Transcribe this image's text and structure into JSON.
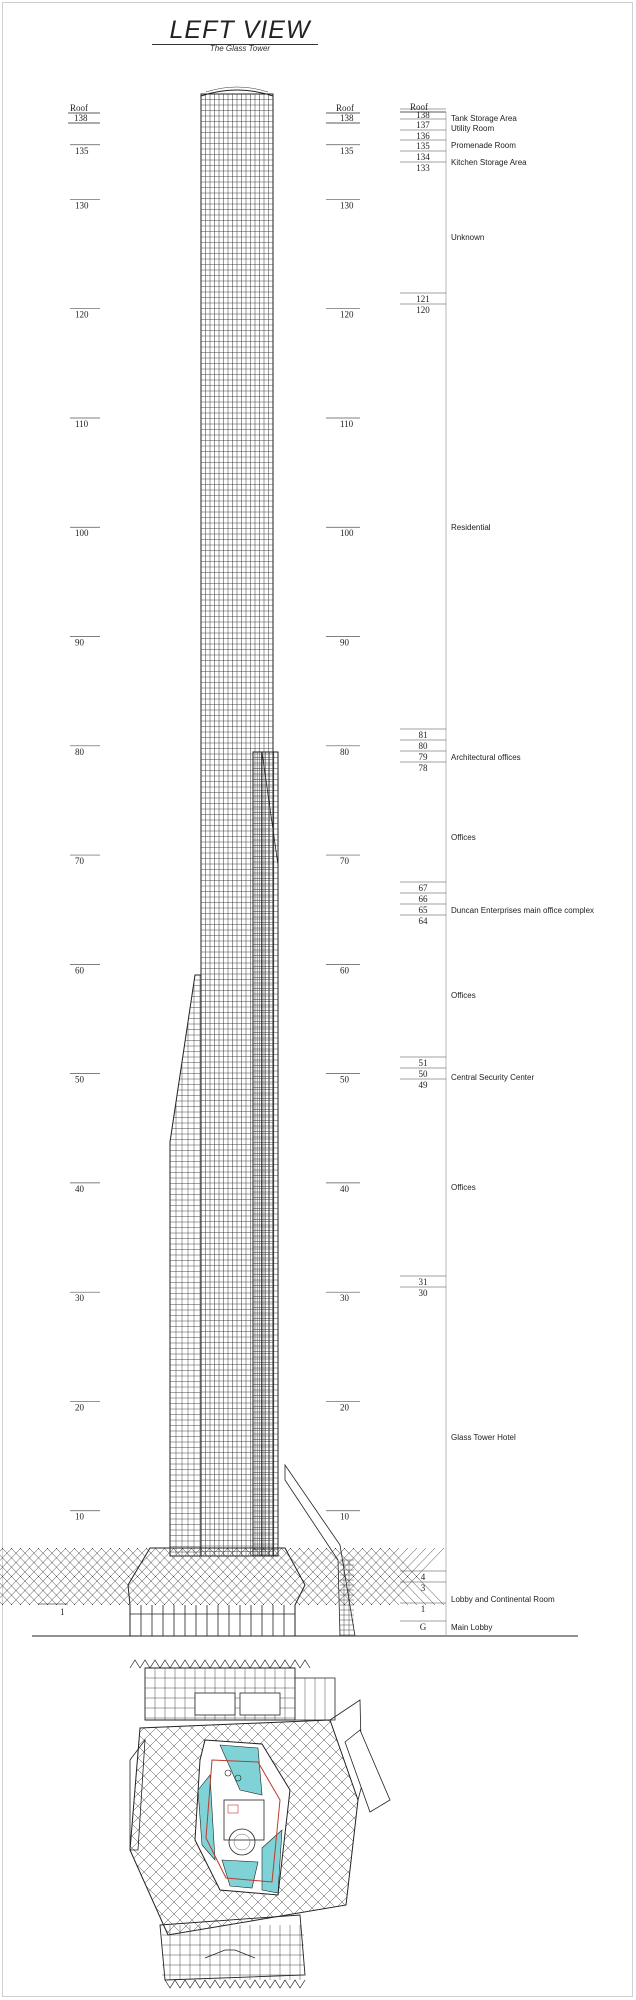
{
  "header": {
    "title": "LEFT VIEW",
    "subtitle": "The Glass Tower"
  },
  "left_scale": {
    "roof_label": "Roof",
    "top_label": "138",
    "marks": [
      "135",
      "130",
      "120",
      "110",
      "100",
      "90",
      "80",
      "70",
      "60",
      "50",
      "40",
      "30",
      "20",
      "10"
    ],
    "ground_label": "1"
  },
  "mid_scale": {
    "roof_label": "Roof",
    "top_label": "138",
    "marks": [
      "135",
      "130",
      "120",
      "110",
      "100",
      "90",
      "80",
      "70",
      "60",
      "50",
      "40",
      "30",
      "20",
      "10"
    ]
  },
  "floor_index": {
    "roof_label": "Roof",
    "levels": [
      {
        "floor": "138",
        "label": "Tank Storage Area"
      },
      {
        "floor": "137",
        "label": "Utility Room"
      },
      {
        "floor": "136",
        "label": "Promenade Room"
      },
      {
        "floor": "135",
        "label": ""
      },
      {
        "floor": "134",
        "label": "Kitchen Storage Area"
      },
      {
        "floor": "133",
        "label": ""
      },
      {
        "floor": "121",
        "label": ""
      },
      {
        "floor": "120",
        "label": ""
      },
      {
        "floor": "81",
        "label": ""
      },
      {
        "floor": "80",
        "label": "Architectural offices"
      },
      {
        "floor": "79",
        "label": ""
      },
      {
        "floor": "78",
        "label": ""
      },
      {
        "floor": "67",
        "label": ""
      },
      {
        "floor": "66",
        "label": "Duncan Enterprises main office complex"
      },
      {
        "floor": "65",
        "label": ""
      },
      {
        "floor": "64",
        "label": ""
      },
      {
        "floor": "51",
        "label": ""
      },
      {
        "floor": "50",
        "label": "Central Security Center"
      },
      {
        "floor": "49",
        "label": ""
      },
      {
        "floor": "31",
        "label": ""
      },
      {
        "floor": "30",
        "label": ""
      },
      {
        "floor": "4",
        "label": ""
      },
      {
        "floor": "3",
        "label": ""
      },
      {
        "floor": "1",
        "label": ""
      },
      {
        "floor": "G",
        "label": "Main Lobby"
      }
    ],
    "zones": [
      {
        "label": "Unknown"
      },
      {
        "label": "Residential"
      },
      {
        "label": "Offices"
      },
      {
        "label": "Offices"
      },
      {
        "label": "Offices"
      },
      {
        "label": "Glass Tower Hotel"
      },
      {
        "label": "Lobby and Continental Room"
      }
    ]
  },
  "colors": {
    "line": "#222222",
    "grid": "#333333",
    "accent_cyan": "#7fd3d6",
    "accent_red": "#c0392b"
  }
}
